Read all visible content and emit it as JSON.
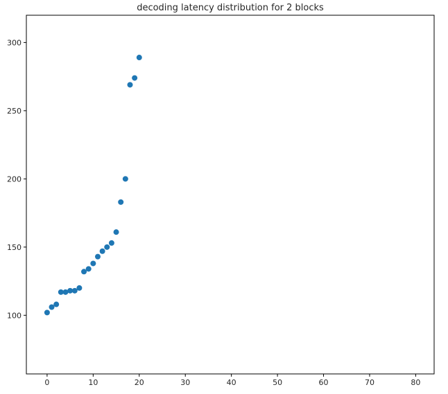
{
  "chart_data": {
    "type": "scatter",
    "title": "decoding latency distribution for 2 blocks",
    "xlabel": "",
    "ylabel": "",
    "xlim": [
      -4.5,
      84
    ],
    "ylim": [
      57,
      320
    ],
    "x_ticks": [
      0,
      10,
      20,
      30,
      40,
      50,
      60,
      70,
      80
    ],
    "y_ticks": [
      100,
      150,
      200,
      250,
      300
    ],
    "grid": false,
    "marker_color": "#1f77b4",
    "series": [
      {
        "x": [
          0,
          1,
          2,
          3,
          4,
          5,
          6,
          7,
          8,
          9,
          10,
          11,
          12,
          13,
          14,
          15,
          16,
          17,
          18,
          19,
          20
        ],
        "y": [
          102,
          106,
          108,
          117,
          117,
          118,
          118,
          120,
          132,
          134,
          138,
          143,
          147,
          150,
          153,
          161,
          183,
          200,
          269,
          274,
          289
        ]
      }
    ]
  }
}
